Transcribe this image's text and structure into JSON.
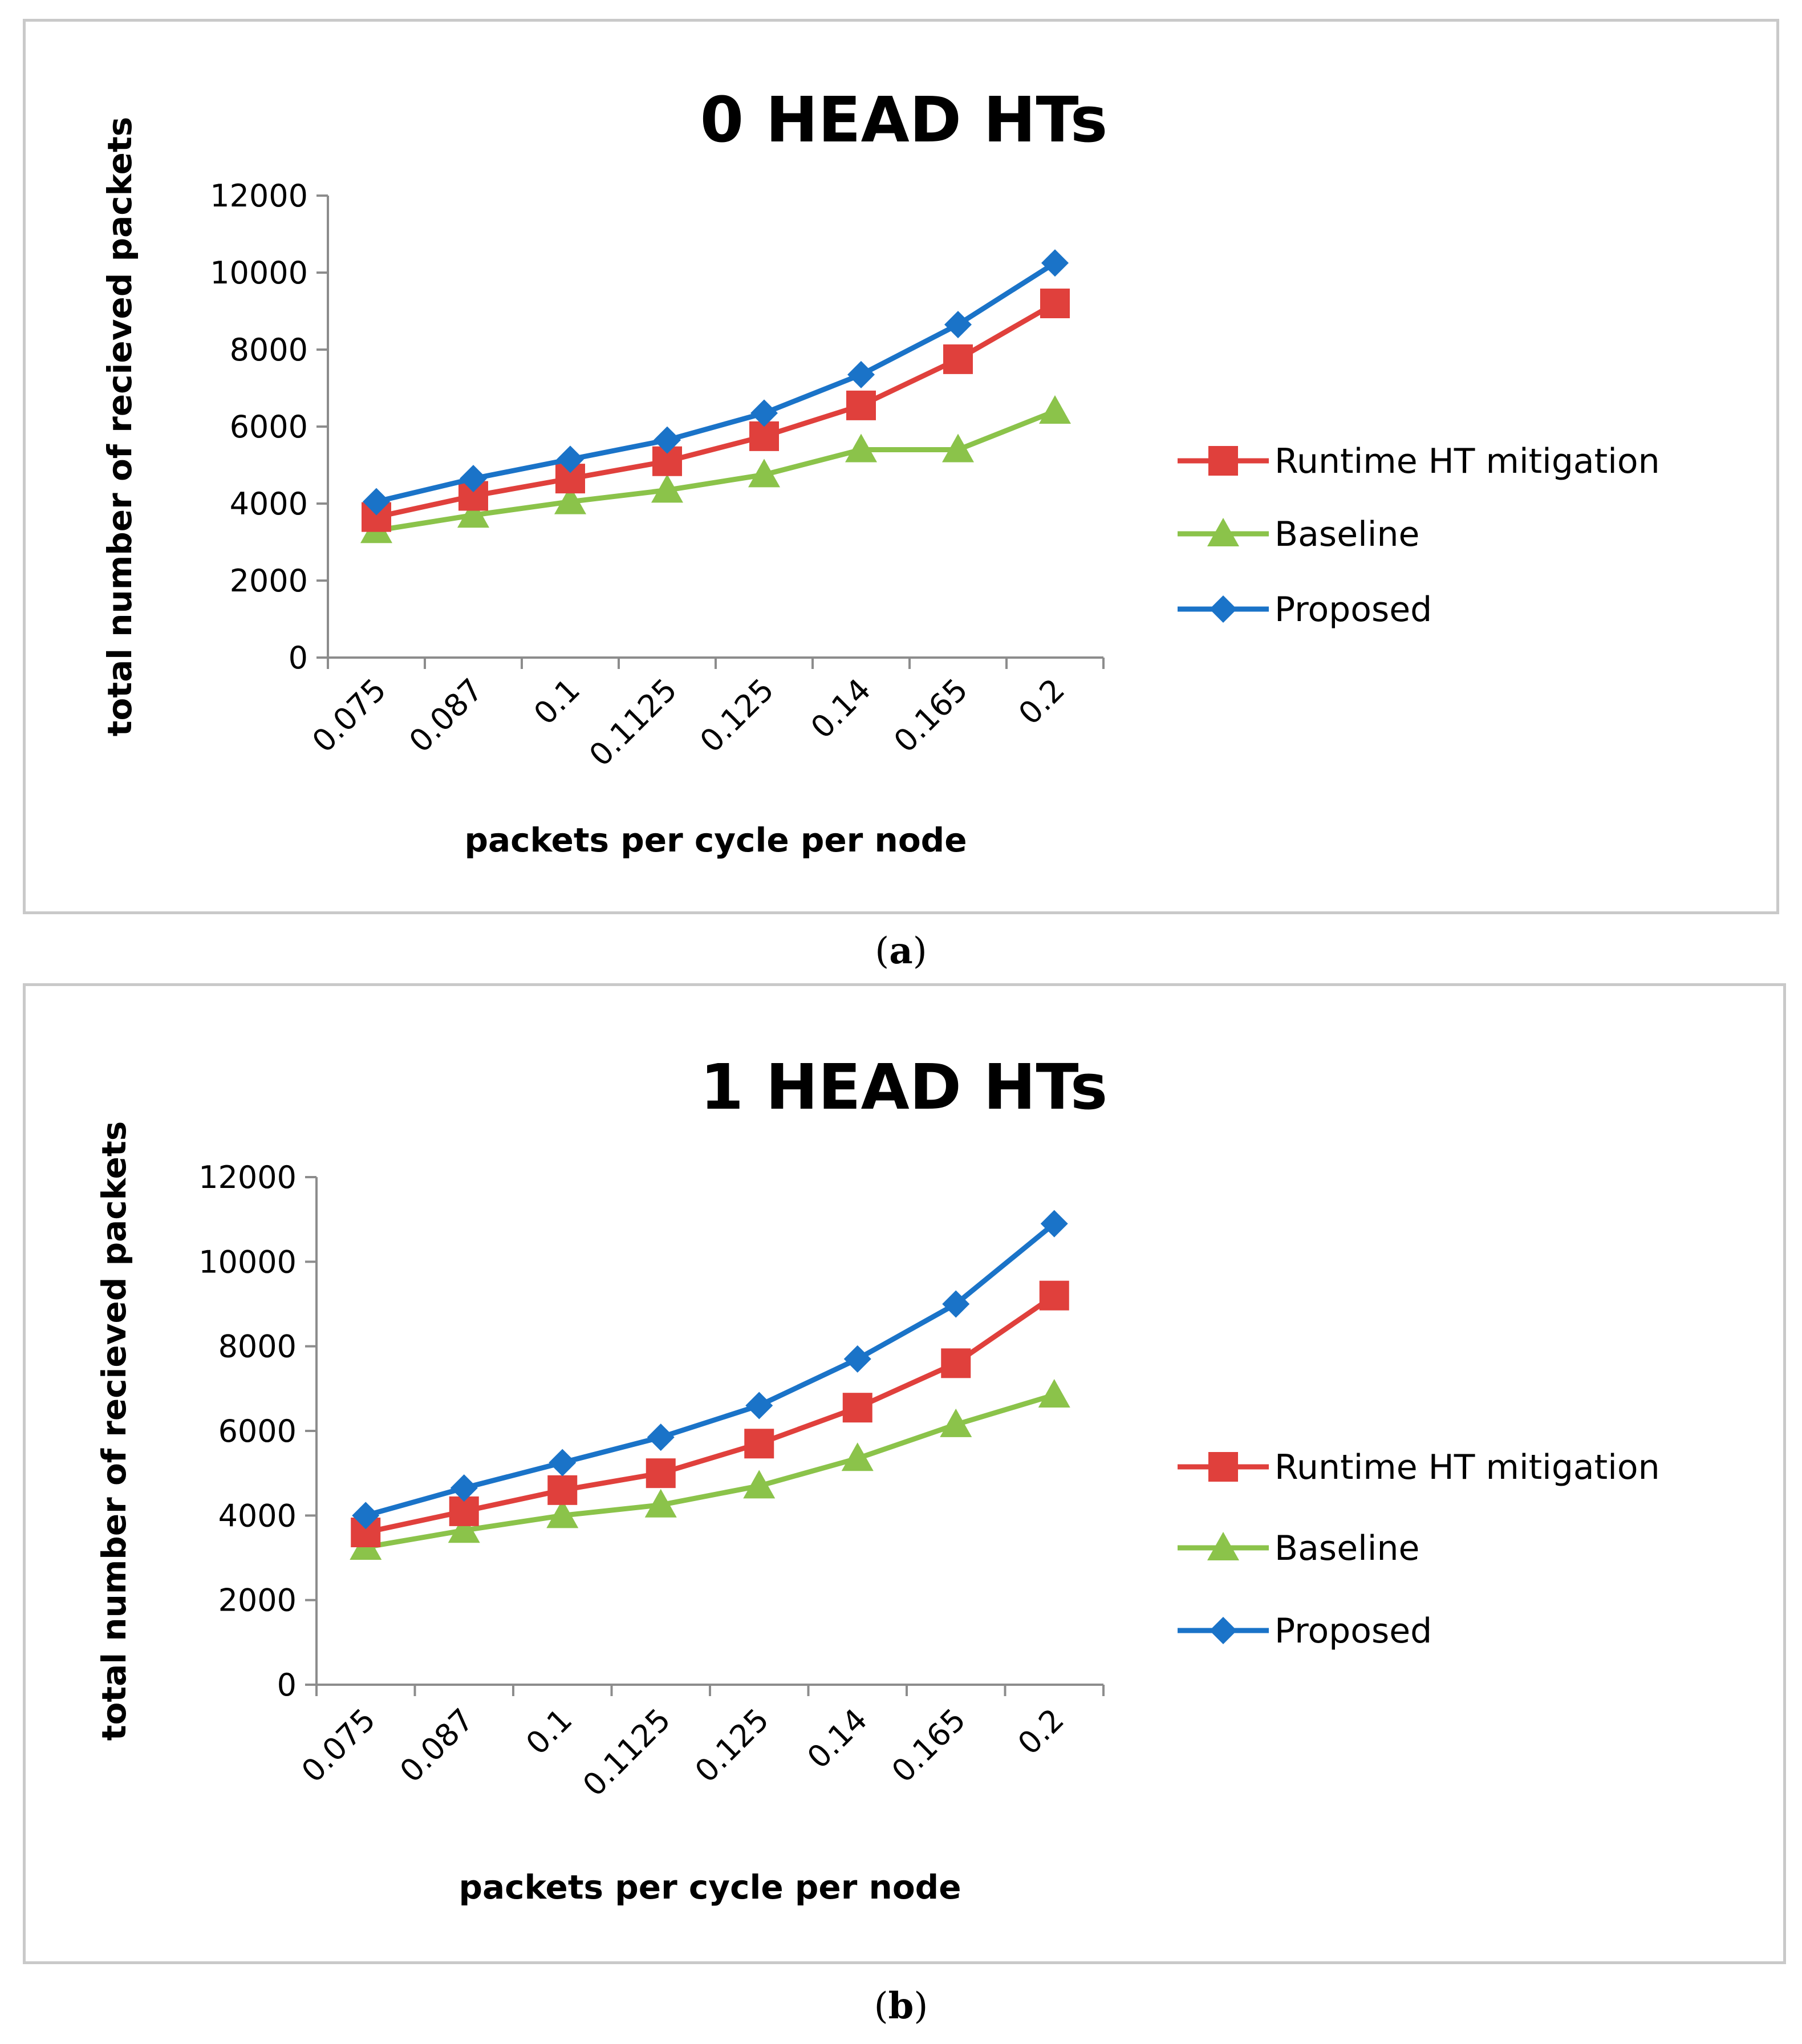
{
  "chart_data": [
    {
      "type": "line",
      "panel": "a",
      "caption": "a",
      "title": "0 HEAD HTs",
      "xlabel": "packets per cycle per node",
      "ylabel": "total number of recieved packets",
      "categories": [
        "0.075",
        "0.087",
        "0.1",
        "0.1125",
        "0.125",
        "0.14",
        "0.165",
        "0.2"
      ],
      "ylim": [
        0,
        12000
      ],
      "yticks": [
        0,
        2000,
        4000,
        6000,
        8000,
        10000,
        12000
      ],
      "legend_position": "right",
      "series": [
        {
          "name": "Runtime HT mitigation",
          "color": "#e0403c",
          "marker": "square",
          "values": [
            3650,
            4200,
            4650,
            5100,
            5750,
            6550,
            7750,
            9200
          ]
        },
        {
          "name": "Baseline",
          "color": "#8bc34a",
          "marker": "triangle",
          "values": [
            3300,
            3700,
            4050,
            4350,
            4750,
            5400,
            5400,
            6400
          ]
        },
        {
          "name": "Proposed",
          "color": "#1a73c8",
          "marker": "diamond",
          "values": [
            4050,
            4650,
            5150,
            5650,
            6350,
            7350,
            8650,
            10250
          ]
        }
      ]
    },
    {
      "type": "line",
      "panel": "b",
      "caption": "b",
      "title": "1 HEAD HTs",
      "xlabel": "packets per cycle per node",
      "ylabel": "total number of recieved packets",
      "categories": [
        "0.075",
        "0.087",
        "0.1",
        "0.1125",
        "0.125",
        "0.14",
        "0.165",
        "0.2"
      ],
      "ylim": [
        0,
        12000
      ],
      "yticks": [
        0,
        2000,
        4000,
        6000,
        8000,
        10000,
        12000
      ],
      "legend_position": "right",
      "series": [
        {
          "name": "Runtime HT mitigation",
          "color": "#e0403c",
          "marker": "square",
          "values": [
            3600,
            4100,
            4600,
            5000,
            5700,
            6550,
            7600,
            9200
          ]
        },
        {
          "name": "Baseline",
          "color": "#8bc34a",
          "marker": "triangle",
          "values": [
            3250,
            3650,
            4000,
            4250,
            4700,
            5350,
            6150,
            6850
          ]
        },
        {
          "name": "Proposed",
          "color": "#1a73c8",
          "marker": "diamond",
          "values": [
            4000,
            4650,
            5250,
            5850,
            6600,
            7700,
            9000,
            10900
          ]
        }
      ]
    }
  ]
}
